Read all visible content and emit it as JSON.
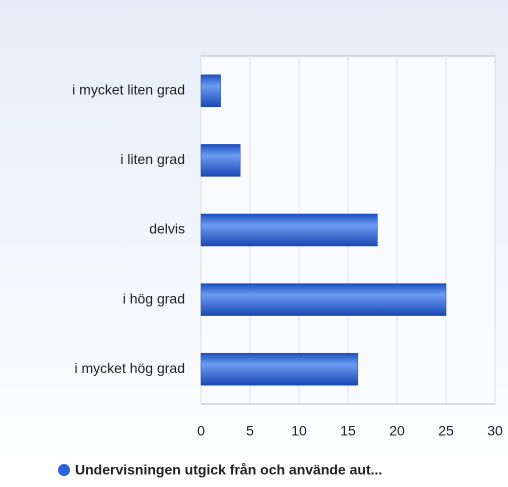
{
  "chart_data": {
    "type": "bar",
    "orientation": "horizontal",
    "categories": [
      "i mycket liten grad",
      "i liten grad",
      "delvis",
      "i hög grad",
      "i mycket hög grad"
    ],
    "series": [
      {
        "name": "Undervisningen utgick från och använde aut...",
        "color": "#2a62d8",
        "values": [
          2,
          4,
          18,
          25,
          16
        ]
      }
    ],
    "xlim": [
      0,
      30
    ],
    "xticks": [
      0,
      5,
      10,
      15,
      20,
      25,
      30
    ],
    "grid": true,
    "legend": "bottom"
  }
}
